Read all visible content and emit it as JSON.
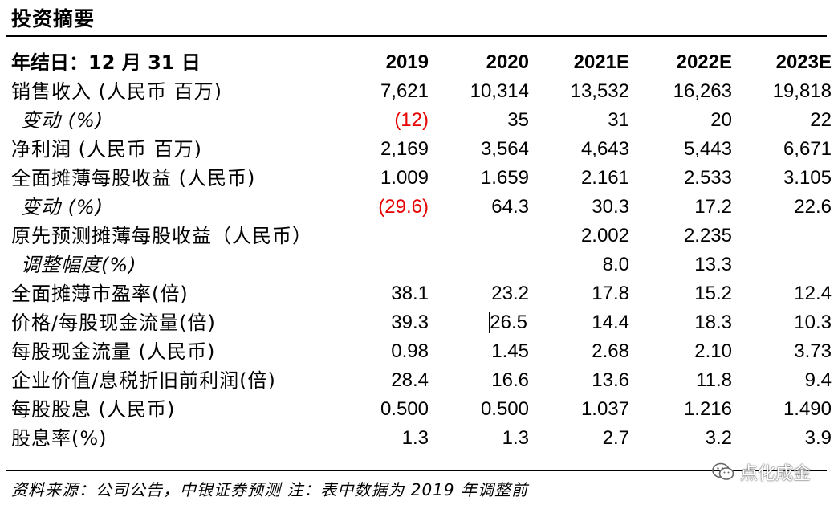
{
  "title": "投资摘要",
  "table": {
    "header": [
      "年结日：12 月 31 日",
      "2019",
      "2020",
      "2021E",
      "2022E",
      "2023E"
    ],
    "rows": [
      {
        "label": "销售收入 (人民币 百万)",
        "sub": false,
        "values": [
          "7,621",
          "10,314",
          "13,532",
          "16,263",
          "19,818"
        ]
      },
      {
        "label": "变动 (%)",
        "sub": true,
        "values": [
          "(12)",
          "35",
          "31",
          "20",
          "22"
        ]
      },
      {
        "label": "净利润 (人民币 百万)",
        "sub": false,
        "values": [
          "2,169",
          "3,564",
          "4,643",
          "5,443",
          "6,671"
        ]
      },
      {
        "label": "全面摊薄每股收益 (人民币)",
        "sub": false,
        "values": [
          "1.009",
          "1.659",
          "2.161",
          "2.533",
          "3.105"
        ]
      },
      {
        "label": "变动 (%)",
        "sub": true,
        "values": [
          "(29.6)",
          "64.3",
          "30.3",
          "17.2",
          "22.6"
        ]
      },
      {
        "label": "原先预测摊薄每股收益（人民币）",
        "sub": false,
        "values": [
          "",
          "",
          "2.002",
          "2.235",
          ""
        ]
      },
      {
        "label": "调整幅度(%)",
        "sub": true,
        "values": [
          "",
          "",
          "8.0",
          "13.3",
          ""
        ]
      },
      {
        "label": "全面摊薄市盈率(倍)",
        "sub": false,
        "values": [
          "38.1",
          "23.2",
          "17.8",
          "15.2",
          "12.4"
        ]
      },
      {
        "label": "价格/每股现金流量(倍)",
        "sub": false,
        "values": [
          "39.3",
          "26.5",
          "14.4",
          "18.3",
          "10.3"
        ]
      },
      {
        "label": "每股现金流量 (人民币)",
        "sub": false,
        "values": [
          "0.98",
          "1.45",
          "2.68",
          "2.10",
          "3.73"
        ]
      },
      {
        "label": "企业价值/息税折旧前利润(倍)",
        "sub": false,
        "values": [
          "28.4",
          "16.6",
          "13.6",
          "11.8",
          "9.4"
        ]
      },
      {
        "label": "每股股息 (人民币)",
        "sub": false,
        "values": [
          "0.500",
          "0.500",
          "1.037",
          "1.216",
          "1.490"
        ]
      },
      {
        "label": "股息率(%)",
        "sub": false,
        "values": [
          "1.3",
          "1.3",
          "2.7",
          "3.2",
          "3.9"
        ]
      }
    ],
    "negative_color": "#e60000"
  },
  "footer": {
    "source": "资料来源：公司公告，中银证券预测   注：表中数据为 2019 年调整前"
  },
  "watermark": {
    "icon": "wechat-icon",
    "text": "点化成金"
  }
}
